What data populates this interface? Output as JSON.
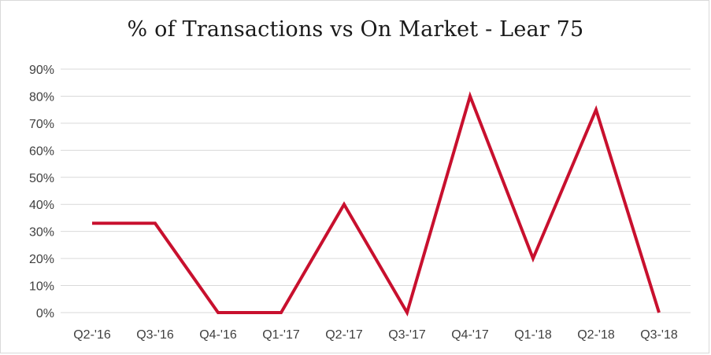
{
  "chart_data": {
    "type": "line",
    "title": "% of Transactions vs On Market - Lear 75",
    "xlabel": "",
    "ylabel": "",
    "categories": [
      "Q2-'16",
      "Q3-'16",
      "Q4-'16",
      "Q1-'17",
      "Q2-'17",
      "Q3-'17",
      "Q4-'17",
      "Q1-'18",
      "Q2-'18",
      "Q3-'18"
    ],
    "series": [
      {
        "values": [
          33,
          33,
          0,
          0,
          40,
          0,
          80,
          20,
          75,
          0
        ],
        "color": "#c8102e"
      }
    ],
    "ylim": [
      0,
      90
    ],
    "y_ticks": [
      "0%",
      "10%",
      "20%",
      "30%",
      "40%",
      "50%",
      "60%",
      "70%",
      "80%",
      "90%"
    ],
    "grid": true,
    "gridline_color": "#d9d9d9",
    "legend": "none"
  }
}
